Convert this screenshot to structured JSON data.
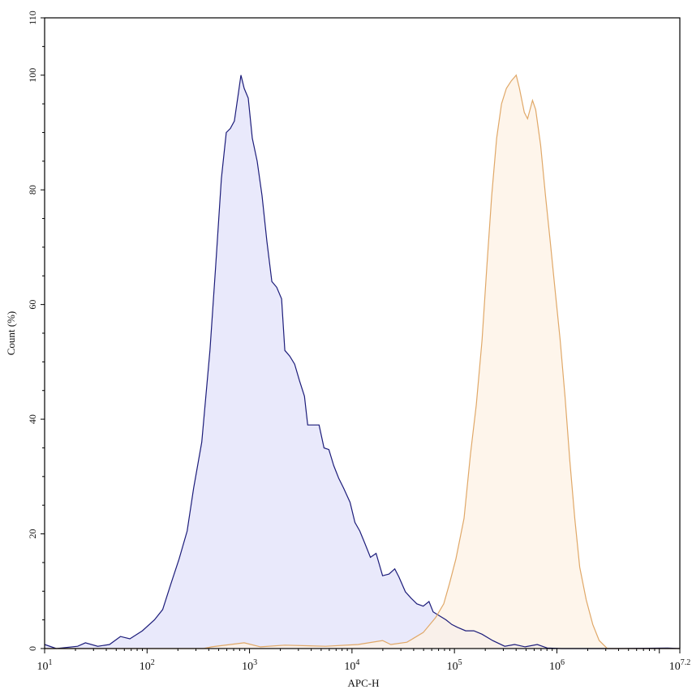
{
  "chart_data": {
    "type": "area",
    "title": "",
    "xlabel": "APC-H",
    "ylabel": "Count (%)",
    "x_scale": "log",
    "xlim": [
      10,
      15848932
    ],
    "ylim": [
      0,
      110
    ],
    "x_ticks": [
      {
        "base": "10",
        "exp": "1",
        "value": 10
      },
      {
        "base": "10",
        "exp": "2",
        "value": 100
      },
      {
        "base": "10",
        "exp": "3",
        "value": 1000
      },
      {
        "base": "10",
        "exp": "4",
        "value": 10000
      },
      {
        "base": "10",
        "exp": "5",
        "value": 100000
      },
      {
        "base": "10",
        "exp": "6",
        "value": 1000000
      },
      {
        "base": "10",
        "exp": "7.2",
        "value": 15848932
      }
    ],
    "y_ticks": [
      "0",
      "20",
      "40",
      "60",
      "80",
      "100",
      "110"
    ],
    "y_tick_values": [
      0,
      20,
      40,
      60,
      80,
      100,
      110
    ],
    "grid": false,
    "legend": "none",
    "series": [
      {
        "color": "#1c1c7a",
        "fill": "#e2e2f9",
        "points": [
          [
            10,
            0.7
          ],
          [
            13,
            0
          ],
          [
            21,
            0.4
          ],
          [
            25,
            1.0
          ],
          [
            33,
            0.4
          ],
          [
            43,
            0.7
          ],
          [
            55,
            2.1
          ],
          [
            68,
            1.7
          ],
          [
            90,
            3.1
          ],
          [
            118,
            5.0
          ],
          [
            142,
            6.8
          ],
          [
            171,
            11.3
          ],
          [
            205,
            15.6
          ],
          [
            246,
            20.5
          ],
          [
            285,
            28
          ],
          [
            342,
            36
          ],
          [
            411,
            52
          ],
          [
            467,
            66.6
          ],
          [
            531,
            82
          ],
          [
            593,
            90
          ],
          [
            649,
            90.7
          ],
          [
            711,
            92
          ],
          [
            780,
            97
          ],
          [
            824,
            100
          ],
          [
            887,
            97.7
          ],
          [
            971,
            96
          ],
          [
            1064,
            89
          ],
          [
            1188,
            85
          ],
          [
            1325,
            79
          ],
          [
            1479,
            71
          ],
          [
            1651,
            64
          ],
          [
            1843,
            63
          ],
          [
            2057,
            61
          ],
          [
            2213,
            52
          ],
          [
            2471,
            51
          ],
          [
            2757,
            49.6
          ],
          [
            3078,
            46.7
          ],
          [
            3436,
            44
          ],
          [
            3697,
            39
          ],
          [
            4202,
            39
          ],
          [
            4776,
            39
          ],
          [
            5331,
            35
          ],
          [
            5950,
            34.7
          ],
          [
            6642,
            31.9
          ],
          [
            7414,
            29.7
          ],
          [
            8275,
            28
          ],
          [
            9572,
            25.5
          ],
          [
            10690,
            22
          ],
          [
            11930,
            20.5
          ],
          [
            13310,
            18.4
          ],
          [
            15130,
            15.9
          ],
          [
            17200,
            16.6
          ],
          [
            19900,
            12.7
          ],
          [
            23020,
            13
          ],
          [
            26170,
            13.9
          ],
          [
            28700,
            12.5
          ],
          [
            33200,
            9.9
          ],
          [
            37750,
            8.8
          ],
          [
            42920,
            7.8
          ],
          [
            49640,
            7.4
          ],
          [
            56440,
            8.2
          ],
          [
            61920,
            6.4
          ],
          [
            71620,
            5.7
          ],
          [
            82850,
            5.0
          ],
          [
            94200,
            4.2
          ],
          [
            107100,
            3.7
          ],
          [
            128800,
            3.1
          ],
          [
            154700,
            3.1
          ],
          [
            185900,
            2.5
          ],
          [
            235600,
            1.4
          ],
          [
            309800,
            0.4
          ],
          [
            386100,
            0.7
          ],
          [
            489800,
            0.3
          ],
          [
            644200,
            0.7
          ],
          [
            803500,
            0.1
          ],
          [
            1117000,
            0
          ],
          [
            4018000,
            0
          ],
          [
            12050000,
            0.1
          ],
          [
            15848932,
            0
          ]
        ]
      },
      {
        "color": "#e0a868",
        "fill": "#fdf1e4",
        "points": [
          [
            10,
            0
          ],
          [
            355,
            0
          ],
          [
            427,
            0.3
          ],
          [
            887,
            1.0
          ],
          [
            1280,
            0.3
          ],
          [
            2213,
            0.6
          ],
          [
            5520,
            0.4
          ],
          [
            11480,
            0.7
          ],
          [
            19900,
            1.4
          ],
          [
            23900,
            0.7
          ],
          [
            34400,
            1.1
          ],
          [
            49640,
            2.8
          ],
          [
            65500,
            5.4
          ],
          [
            78600,
            7.8
          ],
          [
            89300,
            11.3
          ],
          [
            103300,
            15.6
          ],
          [
            124100,
            22.7
          ],
          [
            143700,
            34
          ],
          [
            163300,
            42.5
          ],
          [
            185900,
            53.8
          ],
          [
            207000,
            66.6
          ],
          [
            231200,
            79
          ],
          [
            258100,
            89
          ],
          [
            287900,
            95
          ],
          [
            321500,
            97.7
          ],
          [
            358800,
            99
          ],
          [
            400500,
            100
          ],
          [
            430900,
            97.7
          ],
          [
            481000,
            93.5
          ],
          [
            517600,
            92.4
          ],
          [
            577800,
            95.6
          ],
          [
            621300,
            94
          ],
          [
            693500,
            87.8
          ],
          [
            774500,
            79
          ],
          [
            863000,
            70.8
          ],
          [
            964000,
            62.3
          ],
          [
            1076000,
            53.8
          ],
          [
            1200000,
            43.9
          ],
          [
            1340000,
            32.6
          ],
          [
            1496000,
            22.7
          ],
          [
            1671000,
            14.2
          ],
          [
            1932000,
            8.5
          ],
          [
            2239000,
            4.2
          ],
          [
            2588000,
            1.4
          ],
          [
            3112000,
            0
          ],
          [
            15848932,
            0
          ]
        ]
      }
    ]
  }
}
